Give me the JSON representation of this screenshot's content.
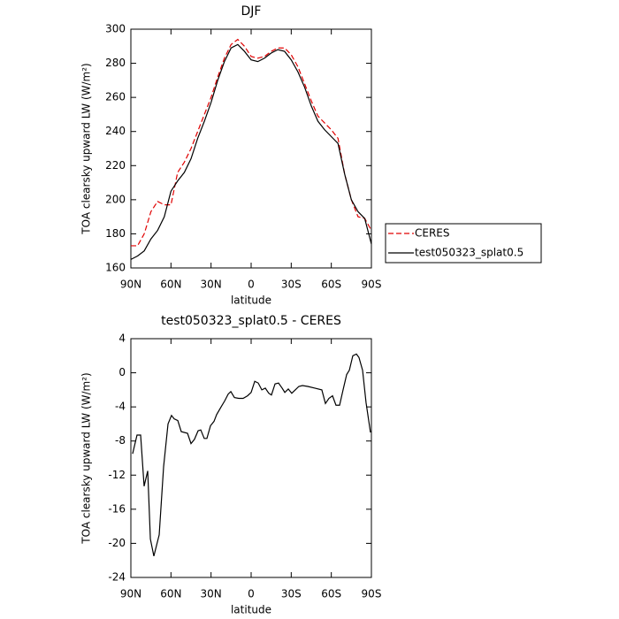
{
  "chart_data": [
    {
      "type": "line",
      "title": "DJF",
      "xlabel": "latitude",
      "ylabel": "TOA clearsky upward LW (W/m²)",
      "x": [
        90,
        85,
        80,
        75,
        70,
        65,
        60,
        55,
        50,
        45,
        40,
        35,
        30,
        25,
        20,
        15,
        10,
        5,
        0,
        -5,
        -10,
        -15,
        -20,
        -25,
        -30,
        -35,
        -40,
        -45,
        -50,
        -55,
        -60,
        -65,
        -70,
        -75,
        -80,
        -85,
        -90
      ],
      "series": [
        {
          "name": "CERES",
          "color": "#e00000",
          "style": "dashed",
          "values": [
            173,
            173,
            180,
            193,
            199,
            197,
            197,
            216,
            222,
            230,
            240,
            250,
            260,
            272,
            283,
            291,
            294,
            290,
            284,
            283,
            284,
            287,
            289,
            289,
            285,
            278,
            268,
            258,
            249,
            245,
            241,
            236,
            215,
            200,
            190,
            189,
            182
          ]
        },
        {
          "name": "test050323_splat0.5",
          "color": "#000000",
          "style": "solid",
          "values": [
            165,
            167,
            170,
            177,
            182,
            190,
            205,
            211,
            216,
            224,
            236,
            246,
            257,
            270,
            281,
            289,
            291,
            287,
            282,
            281,
            283,
            286,
            288,
            287,
            282,
            275,
            266,
            255,
            246,
            241,
            237,
            233,
            215,
            200,
            193,
            189,
            174
          ]
        }
      ],
      "xlim": [
        90,
        -90
      ],
      "xticks": [
        {
          "value": 90,
          "label": "90N"
        },
        {
          "value": 60,
          "label": "60N"
        },
        {
          "value": 30,
          "label": "30N"
        },
        0,
        {
          "value": -30,
          "label": "30S"
        },
        {
          "value": -60,
          "label": "60S"
        },
        {
          "value": -90,
          "label": "90S"
        }
      ],
      "ylim": [
        160,
        300
      ],
      "yticks": [
        160,
        180,
        200,
        220,
        240,
        260,
        280,
        300
      ],
      "legend": "right"
    },
    {
      "type": "line",
      "title": "test050323_splat0.5 - CERES",
      "xlabel": "latitude",
      "ylabel": "TOA clearsky upward LW (W/m²)",
      "x": [
        88.7,
        85.4,
        82.7,
        80.1,
        77.4,
        75.4,
        72.8,
        68.8,
        65.5,
        62.2,
        59.6,
        57.6,
        54.9,
        52.3,
        47.6,
        45,
        42.4,
        39.7,
        37.7,
        35.1,
        33.1,
        30.4,
        27.8,
        25.8,
        22.5,
        19.8,
        17.2,
        15.2,
        12.5,
        9.3,
        6,
        2.7,
        0,
        -2.7,
        -5.3,
        -8,
        -10.6,
        -13.2,
        -15.2,
        -17.9,
        -20.5,
        -23.2,
        -25.2,
        -27.8,
        -30.4,
        -33.1,
        -35.7,
        -38.4,
        -42.4,
        -47.7,
        -52.9,
        -55.6,
        -58.2,
        -60.9,
        -63.5,
        -66.2,
        -68.8,
        -71.5,
        -73.5,
        -76.1,
        -78.8,
        -80.7,
        -83.4,
        -86,
        -89.3
      ],
      "series": [
        {
          "color": "#000000",
          "style": "solid",
          "values": [
            -9.5,
            -7.3,
            -7.3,
            -13.3,
            -11.5,
            -19.5,
            -21.5,
            -19,
            -11,
            -6,
            -5,
            -5.4,
            -5.6,
            -6.9,
            -7.1,
            -8.3,
            -7.8,
            -6.8,
            -6.7,
            -7.7,
            -7.7,
            -6.2,
            -5.7,
            -4.9,
            -4,
            -3.3,
            -2.5,
            -2.2,
            -2.9,
            -3,
            -3,
            -2.7,
            -2.3,
            -1,
            -1.2,
            -2,
            -1.8,
            -2.4,
            -2.6,
            -1.3,
            -1.2,
            -1.8,
            -2.3,
            -1.9,
            -2.4,
            -2,
            -1.6,
            -1.5,
            -1.6,
            -1.8,
            -2,
            -3.6,
            -3,
            -2.7,
            -3.8,
            -3.8,
            -2,
            -0.2,
            0.3,
            2,
            2.2,
            1.8,
            0.3,
            -3.5,
            -7
          ]
        }
      ],
      "xlim": [
        90,
        -90
      ],
      "xticks": [
        {
          "value": 90,
          "label": "90N"
        },
        {
          "value": 60,
          "label": "60N"
        },
        {
          "value": 30,
          "label": "30N"
        },
        0,
        {
          "value": -30,
          "label": "30S"
        },
        {
          "value": -60,
          "label": "60S"
        },
        {
          "value": -90,
          "label": "90S"
        }
      ],
      "ylim": [
        -24,
        4
      ],
      "yticks": [
        -24,
        -20,
        -16,
        -12,
        -8,
        -4,
        0,
        4
      ]
    }
  ]
}
